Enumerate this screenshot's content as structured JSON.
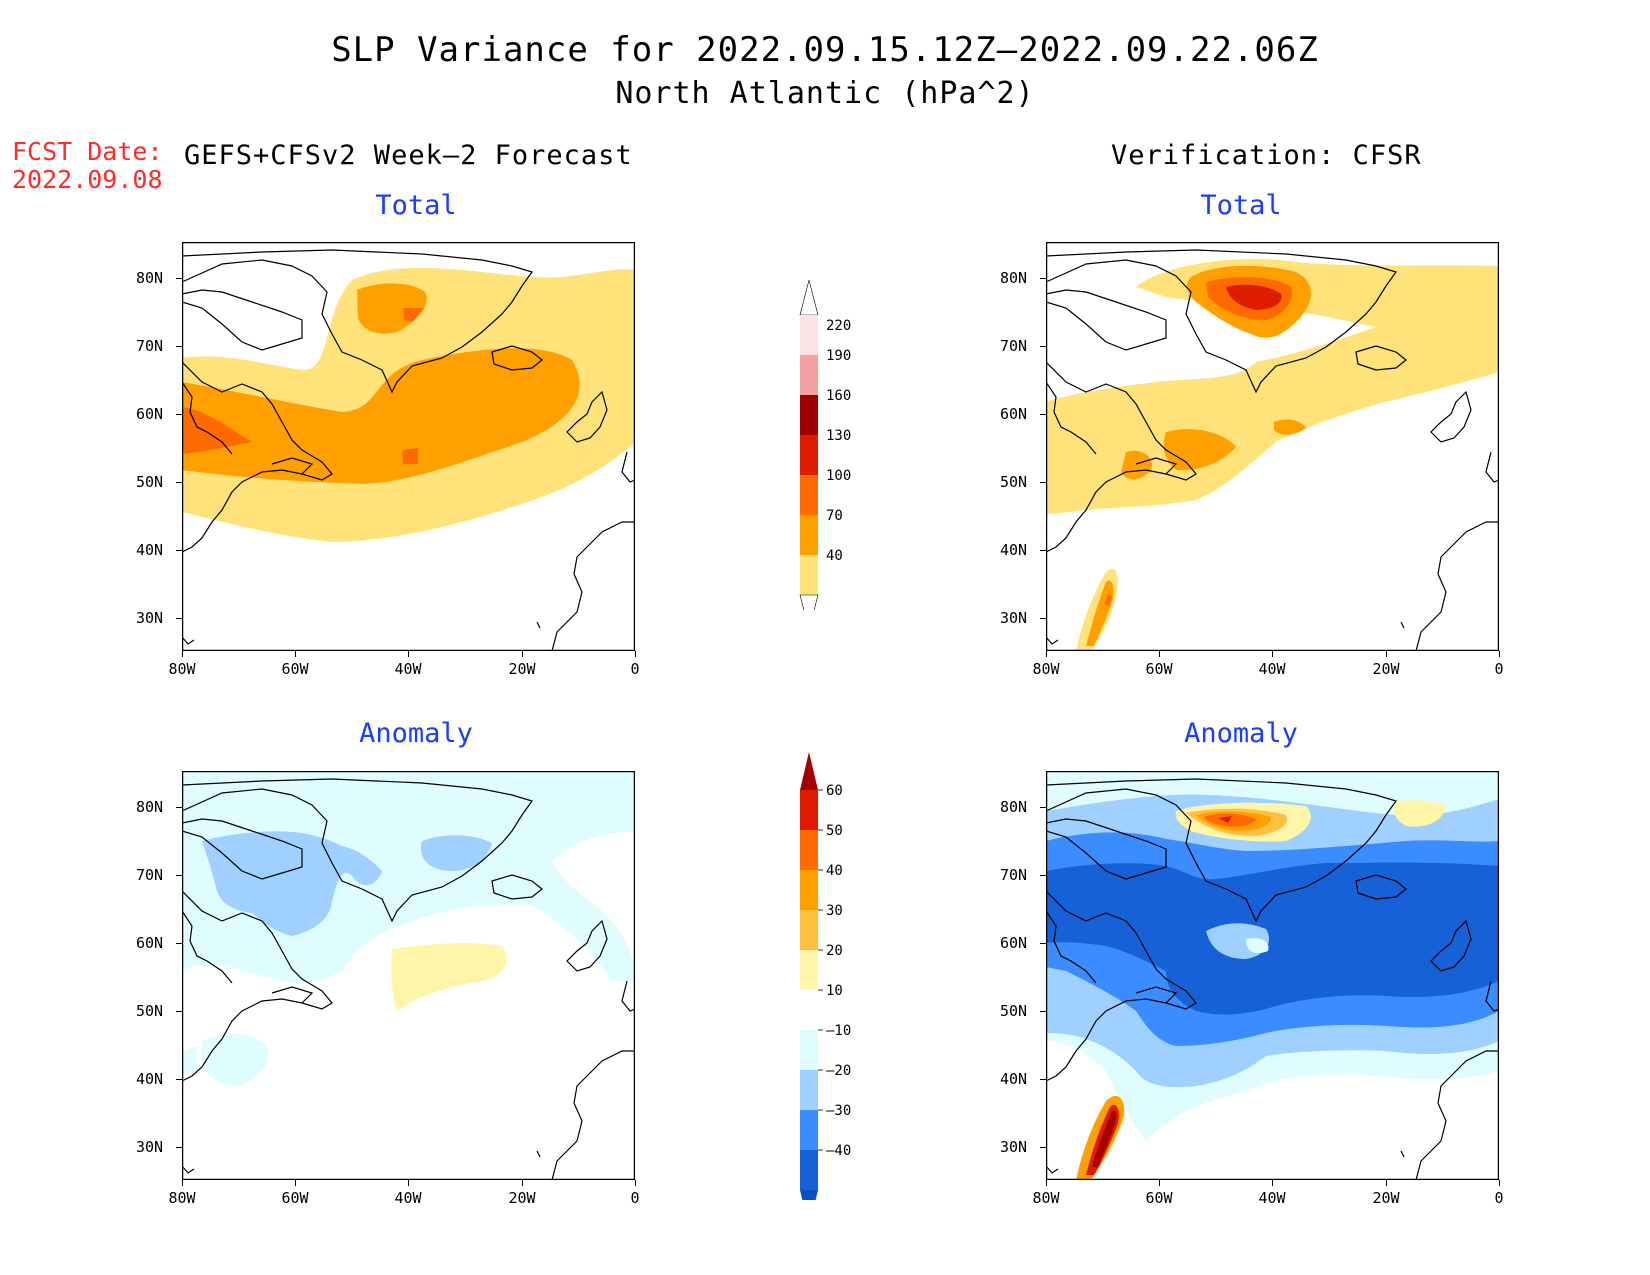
{
  "header": {
    "title": "SLP Variance for 2022.09.15.12Z–2022.09.22.06Z",
    "subtitle": "North Atlantic (hPa^2)",
    "fcst_label": "FCST Date:",
    "fcst_date": "2022.09.08"
  },
  "columns": {
    "left": "GEFS+CFSv2 Week–2 Forecast",
    "right": "Verification: CFSR"
  },
  "panels": {
    "top_left_title": "Total",
    "top_right_title": "Total",
    "bottom_left_title": "Anomaly",
    "bottom_right_title": "Anomaly"
  },
  "axes": {
    "lat_labels": [
      "80N",
      "70N",
      "60N",
      "50N",
      "40N",
      "30N"
    ],
    "lon_labels": [
      "80W",
      "60W",
      "40W",
      "20W",
      "0"
    ]
  },
  "colorbar_total": {
    "labels": [
      "220",
      "190",
      "160",
      "130",
      "100",
      "70",
      "40"
    ],
    "colors": [
      "#fde3e3",
      "#f2a0a0",
      "#a00000",
      "#dd1c00",
      "#ff6a00",
      "#ffa000",
      "#ffe37a"
    ]
  },
  "colorbar_anomaly": {
    "labels": [
      "60",
      "50",
      "40",
      "30",
      "20",
      "10",
      "–10",
      "–20",
      "–30",
      "–40"
    ],
    "colors": [
      "#a50000",
      "#e01a00",
      "#ff6a00",
      "#ffa000",
      "#ffc040",
      "#fff5a8",
      "#ffffff",
      "#dffcff",
      "#9fd0ff",
      "#3a8cff",
      "#1660d8",
      "#0a50c0"
    ]
  }
}
